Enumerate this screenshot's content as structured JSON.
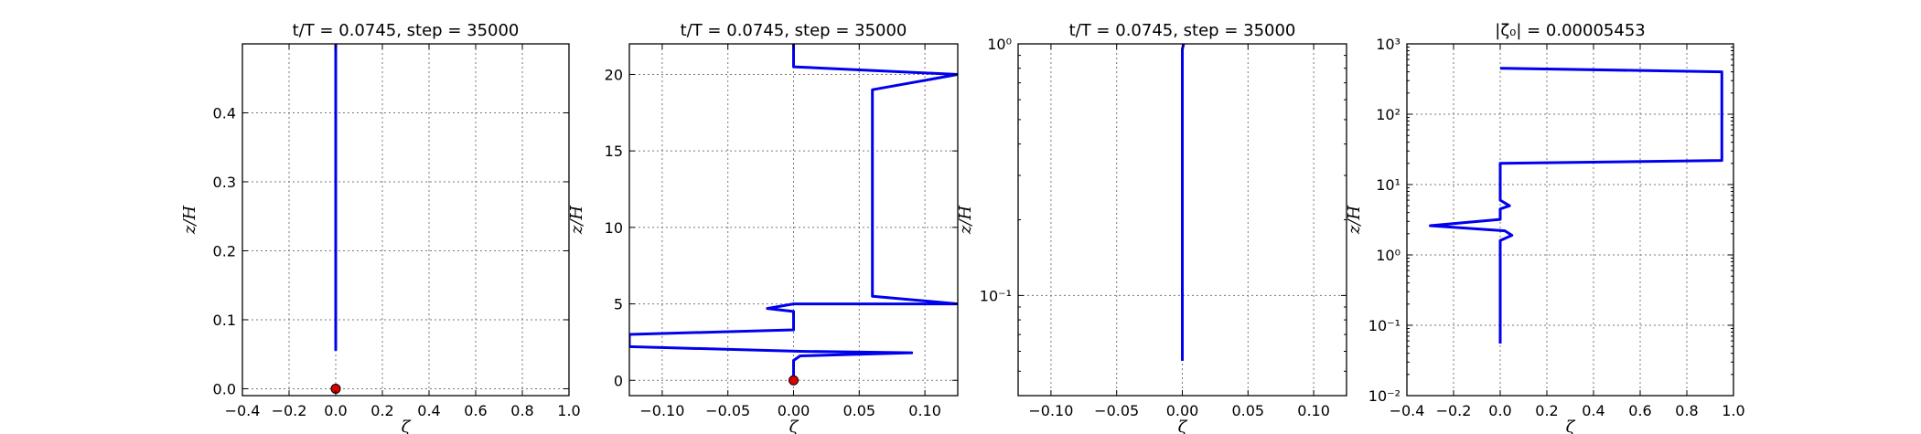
{
  "colors": {
    "profile": "#0000ee",
    "marker": "#dd0000",
    "grid": "#777777"
  },
  "chart_data": [
    {
      "type": "line",
      "title": "t/T = 0.0745, step = 35000",
      "xlabel": "ζ",
      "ylabel": "z/H",
      "xlim": [
        -0.4,
        1.0
      ],
      "ylim": [
        -0.01,
        0.5
      ],
      "xticks": [
        -0.4,
        -0.2,
        0.0,
        0.2,
        0.4,
        0.6,
        0.8,
        1.0
      ],
      "xtick_labels": [
        "−0.4",
        "−0.2",
        "0.0",
        "0.2",
        "0.4",
        "0.6",
        "0.8",
        "1.0"
      ],
      "yticks": [
        0.0,
        0.1,
        0.2,
        0.3,
        0.4
      ],
      "ytick_labels": [
        "0.0",
        "0.1",
        "0.2",
        "0.3",
        "0.4"
      ],
      "yscale": "linear",
      "grid": true,
      "series": [
        {
          "kind": "profile",
          "points": [
            [
              0.0,
              0.055
            ],
            [
              0.0,
              0.5
            ]
          ]
        },
        {
          "kind": "marker",
          "points": [
            [
              0.0,
              0.0
            ]
          ]
        }
      ]
    },
    {
      "type": "line",
      "title": "t/T = 0.0745, step = 35000",
      "xlabel": "ζ",
      "ylabel": "z/H",
      "xlim": [
        -0.125,
        0.125
      ],
      "ylim": [
        -1.0,
        22.0
      ],
      "xticks": [
        -0.1,
        -0.05,
        0.0,
        0.05,
        0.1
      ],
      "xtick_labels": [
        "−0.10",
        "−0.05",
        "0.00",
        "0.05",
        "0.10"
      ],
      "yticks": [
        0,
        5,
        10,
        15,
        20
      ],
      "ytick_labels": [
        "0",
        "5",
        "10",
        "15",
        "20"
      ],
      "yscale": "linear",
      "grid": true,
      "series": [
        {
          "kind": "profile",
          "points": [
            [
              0.0,
              0.055
            ],
            [
              0.0,
              1.3
            ],
            [
              0.005,
              1.6
            ],
            [
              0.09,
              1.8
            ],
            [
              0.005,
              1.9
            ],
            [
              -0.125,
              2.2
            ],
            [
              -0.125,
              3.0
            ],
            [
              0.0,
              3.3
            ],
            [
              0.0,
              4.5
            ],
            [
              -0.02,
              4.7
            ],
            [
              0.0,
              5.0
            ],
            [
              0.125,
              5.0
            ],
            [
              0.06,
              5.5
            ],
            [
              0.06,
              19.0
            ],
            [
              0.125,
              20.0
            ],
            [
              0.0,
              20.5
            ],
            [
              0.0,
              22.0
            ]
          ]
        },
        {
          "kind": "marker",
          "points": [
            [
              0.0,
              0.0
            ]
          ]
        }
      ]
    },
    {
      "type": "line",
      "title": "t/T = 0.0745, step = 35000",
      "xlabel": "ζ",
      "ylabel": "z/H",
      "xlim": [
        -0.125,
        0.125
      ],
      "ylim": [
        0.04,
        1.0
      ],
      "xticks": [
        -0.1,
        -0.05,
        0.0,
        0.05,
        0.1
      ],
      "xtick_labels": [
        "−0.10",
        "−0.05",
        "0.00",
        "0.05",
        "0.10"
      ],
      "yticks": [
        0.1,
        1.0
      ],
      "ytick_labels": [
        "10⁻¹",
        "10⁰"
      ],
      "yscale": "log",
      "grid": true,
      "series": [
        {
          "kind": "profile",
          "points": [
            [
              0.0,
              0.055
            ],
            [
              0.0,
              0.95
            ],
            [
              0.001,
              1.0
            ]
          ]
        }
      ]
    },
    {
      "type": "line",
      "title": "|ζ₀| = 0.00005453",
      "xlabel": "ζ",
      "ylabel": "z/H",
      "xlim": [
        -0.4,
        1.0
      ],
      "ylim": [
        0.01,
        1000
      ],
      "xticks": [
        -0.4,
        -0.2,
        0.0,
        0.2,
        0.4,
        0.6,
        0.8,
        1.0
      ],
      "xtick_labels": [
        "−0.4",
        "−0.2",
        "0.0",
        "0.2",
        "0.4",
        "0.6",
        "0.8",
        "1.0"
      ],
      "yticks": [
        0.01,
        0.1,
        1,
        10,
        100,
        1000
      ],
      "ytick_labels": [
        "10⁻²",
        "10⁻¹",
        "10⁰",
        "10¹",
        "10²",
        "10³"
      ],
      "yscale": "log",
      "grid": true,
      "series": [
        {
          "kind": "profile",
          "points": [
            [
              0.0,
              0.055
            ],
            [
              0.0,
              1.6
            ],
            [
              0.05,
              1.9
            ],
            [
              0.02,
              2.2
            ],
            [
              -0.3,
              2.6
            ],
            [
              0.0,
              3.2
            ],
            [
              0.0,
              4.5
            ],
            [
              0.04,
              5.0
            ],
            [
              0.0,
              6.0
            ],
            [
              0.0,
              20.0
            ],
            [
              0.95,
              22.0
            ],
            [
              0.95,
              400.0
            ],
            [
              0.0,
              450.0
            ]
          ]
        },
        {
          "kind": "marker",
          "points": []
        }
      ]
    }
  ]
}
